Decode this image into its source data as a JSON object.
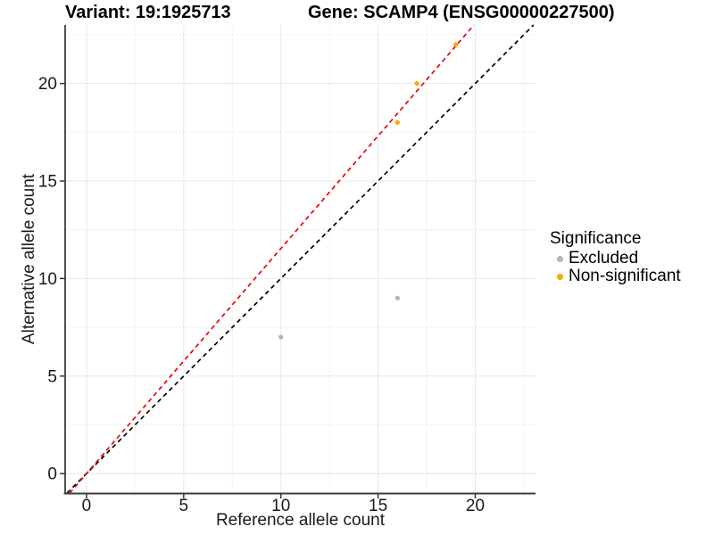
{
  "header": {
    "title_left": "Variant: 19:1925713",
    "title_right": "Gene: SCAMP4 (ENSG00000227500)"
  },
  "chart_data": {
    "type": "scatter",
    "xlabel": "Reference allele count",
    "ylabel": "Alternative allele count",
    "xlim": [
      -1.1,
      23.1
    ],
    "ylim": [
      -1.0,
      23.0
    ],
    "x_ticks": [
      0,
      5,
      10,
      15,
      20
    ],
    "y_ticks": [
      0,
      5,
      10,
      15,
      20
    ],
    "x_minor": [
      2.5,
      7.5,
      12.5,
      17.5,
      22.5
    ],
    "y_minor": [
      2.5,
      7.5,
      12.5,
      17.5,
      22.5
    ],
    "grid": true,
    "series": [
      {
        "name": "Excluded",
        "color": "#b5b5b5",
        "points": [
          [
            10,
            7
          ],
          [
            16,
            9
          ]
        ]
      },
      {
        "name": "Non-significant",
        "color": "#ffa500",
        "points": [
          [
            16,
            18
          ],
          [
            17,
            20
          ],
          [
            19,
            22
          ]
        ]
      }
    ],
    "ref_lines": [
      {
        "name": "identity-line",
        "slope": 1.0,
        "intercept": 0,
        "color": "#000000",
        "style": "dashed"
      },
      {
        "name": "fit-line",
        "slope": 1.154,
        "intercept": 0,
        "color": "#ee0000",
        "style": "dashed"
      }
    ],
    "legend": {
      "title": "Significance",
      "position": "right",
      "items": [
        {
          "label": "Excluded",
          "color": "#b5b5b5"
        },
        {
          "label": "Non-significant",
          "color": "#ffa500"
        }
      ]
    }
  },
  "colors": {
    "grid_major": "#e8e8e8",
    "grid_minor": "#f4f4f4",
    "axis_line": "#3d3d3d",
    "tick_mark": "#333333",
    "text": "#1a1a1a"
  }
}
